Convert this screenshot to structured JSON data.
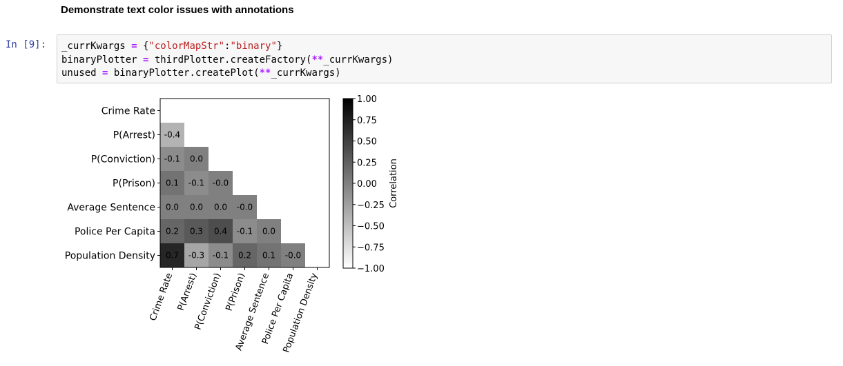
{
  "heading": "Demonstrate text color issues with annotations",
  "cell": {
    "prompt": "In [9]:",
    "code_lines": [
      [
        {
          "t": "_currKwargs ",
          "c": "p"
        },
        {
          "t": "=",
          "c": "op"
        },
        {
          "t": " {",
          "c": "p"
        },
        {
          "t": "\"colorMapStr\"",
          "c": "str"
        },
        {
          "t": ":",
          "c": "p"
        },
        {
          "t": "\"binary\"",
          "c": "str"
        },
        {
          "t": "}",
          "c": "p"
        }
      ],
      [
        {
          "t": "binaryPlotter ",
          "c": "p"
        },
        {
          "t": "=",
          "c": "op"
        },
        {
          "t": " thirdPlotter.createFactory(",
          "c": "p"
        },
        {
          "t": "**",
          "c": "op"
        },
        {
          "t": "_currKwargs)",
          "c": "p"
        }
      ],
      [
        {
          "t": "unused ",
          "c": "p"
        },
        {
          "t": "=",
          "c": "op"
        },
        {
          "t": " binaryPlotter.createPlot(",
          "c": "p"
        },
        {
          "t": "**",
          "c": "op"
        },
        {
          "t": "_currKwargs)",
          "c": "p"
        }
      ]
    ]
  },
  "chart_data": {
    "type": "heatmap",
    "colormap": "binary",
    "labels": [
      "Crime Rate",
      "P(Arrest)",
      "P(Conviction)",
      "P(Prison)",
      "Average Sentence",
      "Police Per Capita",
      "Population Density"
    ],
    "lower_triangle": [
      [],
      [
        -0.4
      ],
      [
        -0.1,
        0.0
      ],
      [
        0.1,
        -0.1,
        -0.0
      ],
      [
        0.0,
        0.0,
        0.0,
        -0.0
      ],
      [
        0.2,
        0.3,
        0.4,
        -0.1,
        0.0
      ],
      [
        0.7,
        -0.3,
        -0.1,
        0.2,
        0.1,
        -0.0
      ]
    ],
    "annotations": [
      [],
      [
        "-0.4"
      ],
      [
        "-0.1",
        "0.0"
      ],
      [
        "0.1",
        "-0.1",
        "-0.0"
      ],
      [
        "0.0",
        "0.0",
        "0.0",
        "-0.0"
      ],
      [
        "0.2",
        "0.3",
        "0.4",
        "-0.1",
        "0.0"
      ],
      [
        "0.7",
        "-0.3",
        "-0.1",
        "0.2",
        "0.1",
        "-0.0"
      ]
    ],
    "colorbar": {
      "label": "Correlation",
      "range": [
        -1.0,
        1.0
      ],
      "ticks": [
        "1.00",
        "0.75",
        "0.50",
        "0.25",
        "0.00",
        "−0.25",
        "−0.50",
        "−0.75",
        "−1.00"
      ]
    }
  }
}
